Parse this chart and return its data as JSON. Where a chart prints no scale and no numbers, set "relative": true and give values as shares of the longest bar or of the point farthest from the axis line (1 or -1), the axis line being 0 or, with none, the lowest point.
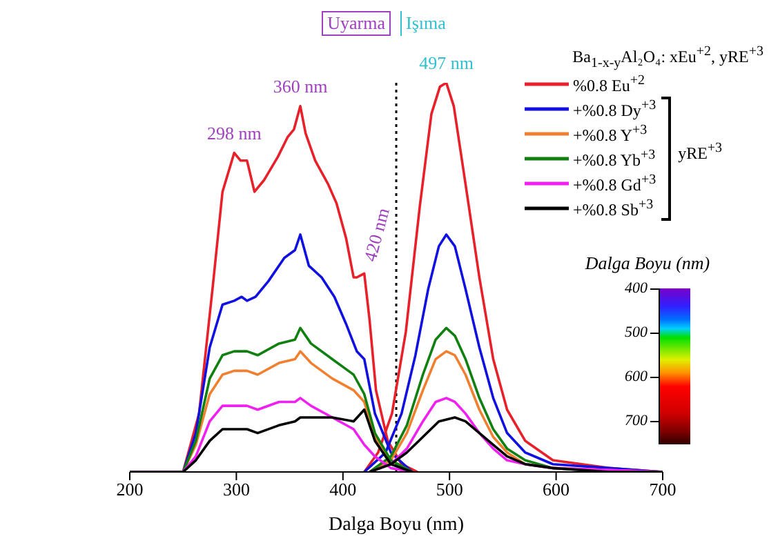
{
  "chart_data": {
    "type": "line",
    "relative": true,
    "xlabel": "Dalga Boyu (nm)",
    "xlim": [
      200,
      700
    ],
    "xticks": [
      200,
      300,
      400,
      500,
      600,
      700
    ],
    "legend": "top right",
    "legend_title": "Ba$_{1-x-y}$Al₂O₄: xEu$^{+2}$, yRE$^{+3}$",
    "ref_lines": [
      {
        "axis": "x",
        "value": 450,
        "line_style": "dotted",
        "color": "#000000"
      }
    ],
    "annotations": [
      "Uyarma",
      "Işıma",
      "yRE$^{+3}$",
      "Dalga Boyu (nm)",
      "400",
      "500",
      "600",
      "700",
      {
        "text": "298 nm",
        "x": 298,
        "y": 0.82
      },
      {
        "text": "360 nm",
        "x": 360,
        "y": 0.94
      },
      {
        "text": "420 nm",
        "x": 420,
        "y": 0.51
      },
      {
        "text": "497 nm",
        "x": 497,
        "y": 1.0
      }
    ],
    "series": [
      {
        "name": "%0.8 Eu$^{+2}$",
        "color": "#e8202a",
        "x": [
          200,
          250,
          265,
          278,
          287,
          298,
          304,
          310,
          317,
          326,
          339,
          348,
          354,
          360,
          365,
          374,
          386,
          394,
          403,
          410,
          413,
          420,
          425,
          431,
          442,
          455,
          470
        ],
        "values": [
          0,
          0,
          0.15,
          0.48,
          0.72,
          0.82,
          0.8,
          0.8,
          0.72,
          0.75,
          0.81,
          0.86,
          0.88,
          0.94,
          0.87,
          0.8,
          0.74,
          0.69,
          0.6,
          0.5,
          0.5,
          0.51,
          0.39,
          0.21,
          0.08,
          0.02,
          0
        ]
      },
      {
        "color": "#e8202a",
        "x": [
          420,
          433,
          446,
          459,
          472,
          483,
          491,
          497,
          504,
          515,
          528,
          541,
          554,
          571,
          597,
          650,
          700
        ],
        "values": [
          0,
          0.05,
          0.15,
          0.36,
          0.68,
          0.92,
          0.99,
          1.0,
          0.94,
          0.74,
          0.5,
          0.29,
          0.16,
          0.08,
          0.03,
          0.01,
          0
        ]
      },
      {
        "name": "+%0.8 Dy$^{+3}$",
        "color": "#1010e0",
        "x": [
          200,
          250,
          262,
          275,
          287,
          298,
          305,
          310,
          318,
          330,
          345,
          355,
          360,
          368,
          380,
          392,
          403,
          413,
          420,
          430,
          445,
          465
        ],
        "values": [
          0,
          0,
          0.1,
          0.32,
          0.43,
          0.44,
          0.45,
          0.44,
          0.45,
          0.49,
          0.55,
          0.57,
          0.61,
          0.53,
          0.5,
          0.45,
          0.38,
          0.31,
          0.29,
          0.15,
          0.05,
          0
        ]
      },
      {
        "color": "#1010e0",
        "x": [
          420,
          440,
          455,
          468,
          480,
          490,
          497,
          505,
          515,
          528,
          541,
          554,
          571,
          597,
          650,
          700
        ],
        "values": [
          0,
          0.05,
          0.15,
          0.3,
          0.47,
          0.58,
          0.61,
          0.58,
          0.47,
          0.32,
          0.19,
          0.1,
          0.05,
          0.02,
          0.01,
          0
        ]
      },
      {
        "name": "+%0.8 Y$^{+3}$",
        "color": "#f08030",
        "x": [
          200,
          250,
          262,
          275,
          287,
          298,
          310,
          320,
          340,
          355,
          360,
          370,
          390,
          410,
          420,
          430,
          445,
          465
        ],
        "values": [
          0,
          0,
          0.07,
          0.2,
          0.25,
          0.26,
          0.26,
          0.25,
          0.28,
          0.29,
          0.31,
          0.28,
          0.24,
          0.21,
          0.18,
          0.09,
          0.03,
          0
        ]
      },
      {
        "color": "#f08030",
        "x": [
          425,
          445,
          460,
          475,
          487,
          497,
          505,
          515,
          528,
          541,
          554,
          571,
          597,
          700
        ],
        "values": [
          0,
          0.03,
          0.1,
          0.21,
          0.29,
          0.31,
          0.3,
          0.25,
          0.16,
          0.09,
          0.05,
          0.02,
          0.01,
          0
        ]
      },
      {
        "name": "+%0.8 Yb$^{+3}$",
        "color": "#108010",
        "x": [
          200,
          250,
          262,
          275,
          287,
          298,
          310,
          320,
          340,
          355,
          360,
          370,
          390,
          410,
          420,
          430,
          445,
          465
        ],
        "values": [
          0,
          0,
          0.08,
          0.24,
          0.3,
          0.31,
          0.31,
          0.3,
          0.33,
          0.34,
          0.37,
          0.33,
          0.29,
          0.25,
          0.2,
          0.1,
          0.03,
          0
        ]
      },
      {
        "color": "#108010",
        "x": [
          425,
          445,
          460,
          475,
          487,
          497,
          505,
          515,
          528,
          541,
          554,
          571,
          597,
          650,
          700
        ],
        "values": [
          0,
          0.04,
          0.12,
          0.25,
          0.34,
          0.37,
          0.35,
          0.29,
          0.19,
          0.11,
          0.06,
          0.03,
          0.01,
          0,
          0
        ]
      },
      {
        "name": "+%0.8 Gd$^{+3}$",
        "color": "#f020f0",
        "x": [
          200,
          250,
          262,
          275,
          287,
          298,
          310,
          320,
          340,
          355,
          360,
          370,
          390,
          410,
          420,
          430,
          445,
          465
        ],
        "values": [
          0,
          0,
          0.04,
          0.13,
          0.17,
          0.17,
          0.17,
          0.16,
          0.18,
          0.18,
          0.19,
          0.17,
          0.14,
          0.11,
          0.07,
          0.04,
          0.01,
          0
        ]
      },
      {
        "color": "#f020f0",
        "x": [
          425,
          445,
          460,
          475,
          487,
          497,
          505,
          515,
          528,
          541,
          554,
          571,
          597,
          700
        ],
        "values": [
          0,
          0.02,
          0.06,
          0.13,
          0.18,
          0.19,
          0.18,
          0.15,
          0.1,
          0.06,
          0.03,
          0.02,
          0.01,
          0
        ]
      },
      {
        "name": "+%0.8 Sb$^{+3}$",
        "color": "#000000",
        "x": [
          200,
          250,
          262,
          275,
          287,
          298,
          310,
          320,
          340,
          355,
          360,
          370,
          390,
          410,
          420,
          430,
          445,
          465
        ],
        "values": [
          0,
          0,
          0.03,
          0.08,
          0.11,
          0.11,
          0.11,
          0.1,
          0.12,
          0.13,
          0.14,
          0.14,
          0.14,
          0.13,
          0.16,
          0.08,
          0.02,
          0
        ]
      },
      {
        "color": "#000000",
        "x": [
          425,
          445,
          460,
          475,
          490,
          505,
          515,
          528,
          541,
          554,
          571,
          597,
          650,
          700
        ],
        "values": [
          0,
          0.02,
          0.05,
          0.09,
          0.13,
          0.14,
          0.13,
          0.1,
          0.07,
          0.04,
          0.02,
          0.01,
          0,
          0
        ]
      }
    ]
  }
}
